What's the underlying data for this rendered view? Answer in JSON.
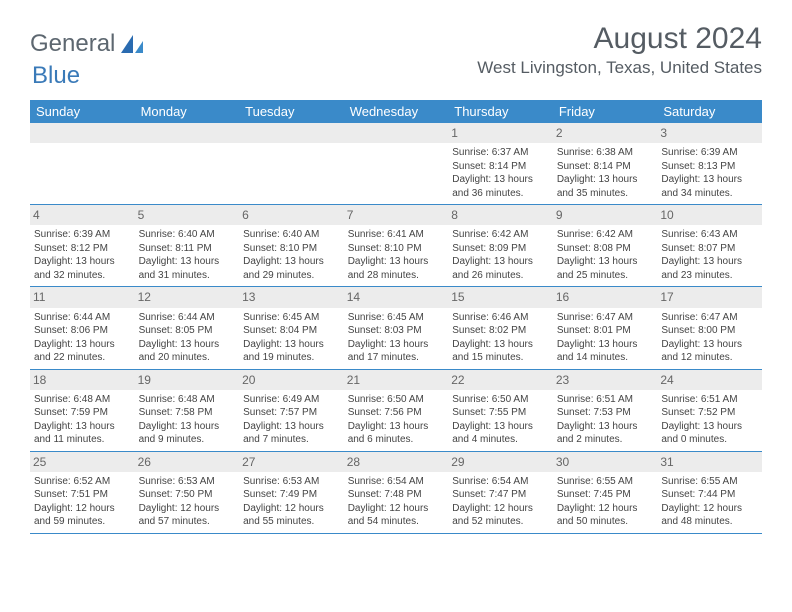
{
  "logo": {
    "part1": "General",
    "part2": "Blue"
  },
  "title": {
    "month": "August 2024",
    "location": "West Livingston, Texas, United States"
  },
  "header_color": "#3a8ac9",
  "daynum_bg": "#ececec",
  "days": [
    "Sunday",
    "Monday",
    "Tuesday",
    "Wednesday",
    "Thursday",
    "Friday",
    "Saturday"
  ],
  "weeks": [
    [
      {
        "n": "",
        "lines": []
      },
      {
        "n": "",
        "lines": []
      },
      {
        "n": "",
        "lines": []
      },
      {
        "n": "",
        "lines": []
      },
      {
        "n": "1",
        "lines": [
          "Sunrise: 6:37 AM",
          "Sunset: 8:14 PM",
          "Daylight: 13 hours and 36 minutes."
        ]
      },
      {
        "n": "2",
        "lines": [
          "Sunrise: 6:38 AM",
          "Sunset: 8:14 PM",
          "Daylight: 13 hours and 35 minutes."
        ]
      },
      {
        "n": "3",
        "lines": [
          "Sunrise: 6:39 AM",
          "Sunset: 8:13 PM",
          "Daylight: 13 hours and 34 minutes."
        ]
      }
    ],
    [
      {
        "n": "4",
        "lines": [
          "Sunrise: 6:39 AM",
          "Sunset: 8:12 PM",
          "Daylight: 13 hours and 32 minutes."
        ]
      },
      {
        "n": "5",
        "lines": [
          "Sunrise: 6:40 AM",
          "Sunset: 8:11 PM",
          "Daylight: 13 hours and 31 minutes."
        ]
      },
      {
        "n": "6",
        "lines": [
          "Sunrise: 6:40 AM",
          "Sunset: 8:10 PM",
          "Daylight: 13 hours and 29 minutes."
        ]
      },
      {
        "n": "7",
        "lines": [
          "Sunrise: 6:41 AM",
          "Sunset: 8:10 PM",
          "Daylight: 13 hours and 28 minutes."
        ]
      },
      {
        "n": "8",
        "lines": [
          "Sunrise: 6:42 AM",
          "Sunset: 8:09 PM",
          "Daylight: 13 hours and 26 minutes."
        ]
      },
      {
        "n": "9",
        "lines": [
          "Sunrise: 6:42 AM",
          "Sunset: 8:08 PM",
          "Daylight: 13 hours and 25 minutes."
        ]
      },
      {
        "n": "10",
        "lines": [
          "Sunrise: 6:43 AM",
          "Sunset: 8:07 PM",
          "Daylight: 13 hours and 23 minutes."
        ]
      }
    ],
    [
      {
        "n": "11",
        "lines": [
          "Sunrise: 6:44 AM",
          "Sunset: 8:06 PM",
          "Daylight: 13 hours and 22 minutes."
        ]
      },
      {
        "n": "12",
        "lines": [
          "Sunrise: 6:44 AM",
          "Sunset: 8:05 PM",
          "Daylight: 13 hours and 20 minutes."
        ]
      },
      {
        "n": "13",
        "lines": [
          "Sunrise: 6:45 AM",
          "Sunset: 8:04 PM",
          "Daylight: 13 hours and 19 minutes."
        ]
      },
      {
        "n": "14",
        "lines": [
          "Sunrise: 6:45 AM",
          "Sunset: 8:03 PM",
          "Daylight: 13 hours and 17 minutes."
        ]
      },
      {
        "n": "15",
        "lines": [
          "Sunrise: 6:46 AM",
          "Sunset: 8:02 PM",
          "Daylight: 13 hours and 15 minutes."
        ]
      },
      {
        "n": "16",
        "lines": [
          "Sunrise: 6:47 AM",
          "Sunset: 8:01 PM",
          "Daylight: 13 hours and 14 minutes."
        ]
      },
      {
        "n": "17",
        "lines": [
          "Sunrise: 6:47 AM",
          "Sunset: 8:00 PM",
          "Daylight: 13 hours and 12 minutes."
        ]
      }
    ],
    [
      {
        "n": "18",
        "lines": [
          "Sunrise: 6:48 AM",
          "Sunset: 7:59 PM",
          "Daylight: 13 hours and 11 minutes."
        ]
      },
      {
        "n": "19",
        "lines": [
          "Sunrise: 6:48 AM",
          "Sunset: 7:58 PM",
          "Daylight: 13 hours and 9 minutes."
        ]
      },
      {
        "n": "20",
        "lines": [
          "Sunrise: 6:49 AM",
          "Sunset: 7:57 PM",
          "Daylight: 13 hours and 7 minutes."
        ]
      },
      {
        "n": "21",
        "lines": [
          "Sunrise: 6:50 AM",
          "Sunset: 7:56 PM",
          "Daylight: 13 hours and 6 minutes."
        ]
      },
      {
        "n": "22",
        "lines": [
          "Sunrise: 6:50 AM",
          "Sunset: 7:55 PM",
          "Daylight: 13 hours and 4 minutes."
        ]
      },
      {
        "n": "23",
        "lines": [
          "Sunrise: 6:51 AM",
          "Sunset: 7:53 PM",
          "Daylight: 13 hours and 2 minutes."
        ]
      },
      {
        "n": "24",
        "lines": [
          "Sunrise: 6:51 AM",
          "Sunset: 7:52 PM",
          "Daylight: 13 hours and 0 minutes."
        ]
      }
    ],
    [
      {
        "n": "25",
        "lines": [
          "Sunrise: 6:52 AM",
          "Sunset: 7:51 PM",
          "Daylight: 12 hours and 59 minutes."
        ]
      },
      {
        "n": "26",
        "lines": [
          "Sunrise: 6:53 AM",
          "Sunset: 7:50 PM",
          "Daylight: 12 hours and 57 minutes."
        ]
      },
      {
        "n": "27",
        "lines": [
          "Sunrise: 6:53 AM",
          "Sunset: 7:49 PM",
          "Daylight: 12 hours and 55 minutes."
        ]
      },
      {
        "n": "28",
        "lines": [
          "Sunrise: 6:54 AM",
          "Sunset: 7:48 PM",
          "Daylight: 12 hours and 54 minutes."
        ]
      },
      {
        "n": "29",
        "lines": [
          "Sunrise: 6:54 AM",
          "Sunset: 7:47 PM",
          "Daylight: 12 hours and 52 minutes."
        ]
      },
      {
        "n": "30",
        "lines": [
          "Sunrise: 6:55 AM",
          "Sunset: 7:45 PM",
          "Daylight: 12 hours and 50 minutes."
        ]
      },
      {
        "n": "31",
        "lines": [
          "Sunrise: 6:55 AM",
          "Sunset: 7:44 PM",
          "Daylight: 12 hours and 48 minutes."
        ]
      }
    ]
  ]
}
